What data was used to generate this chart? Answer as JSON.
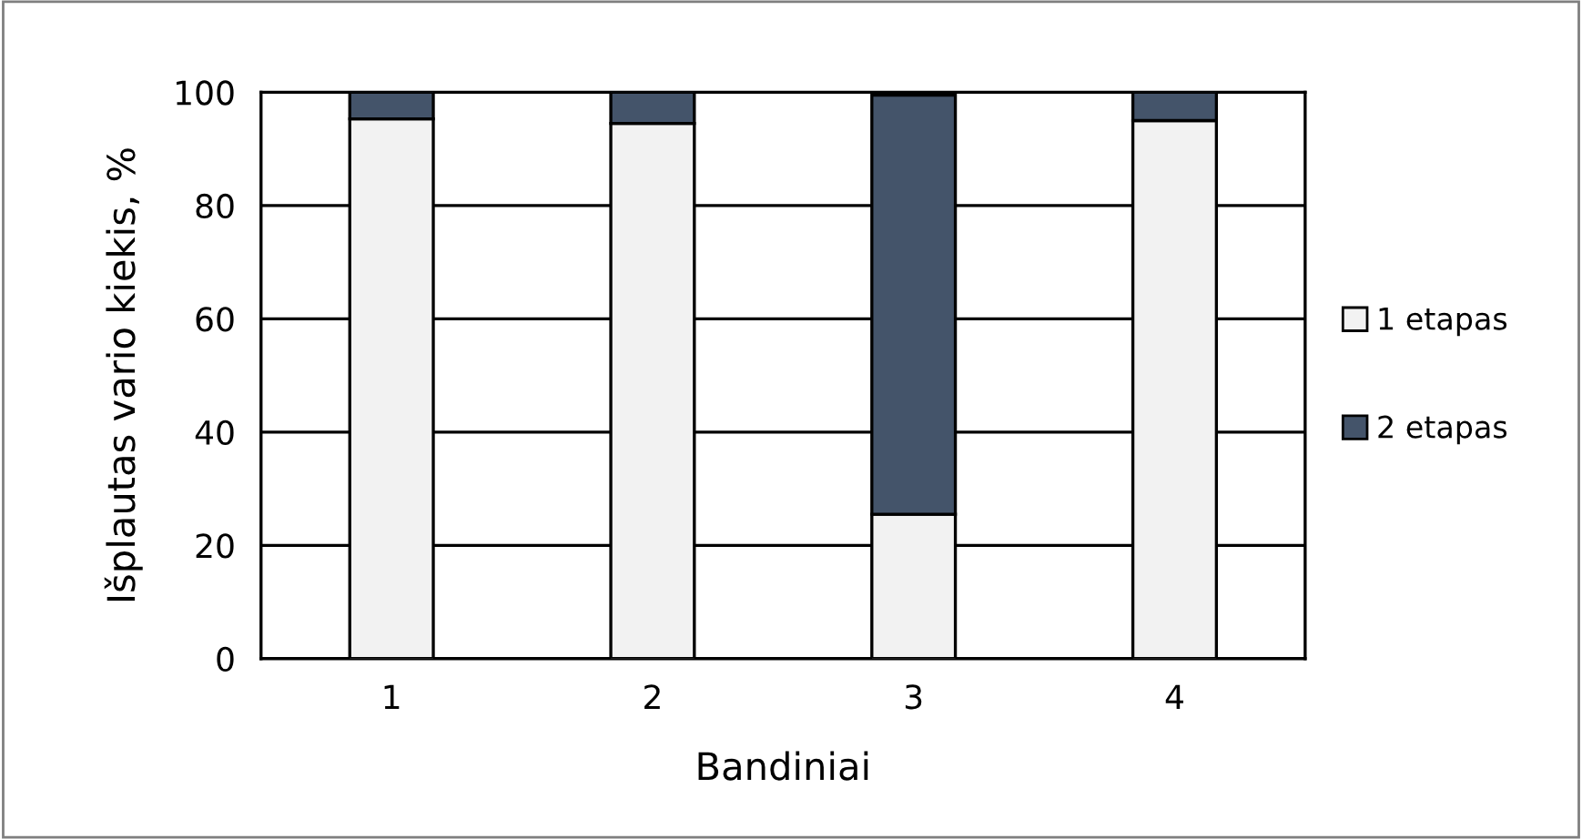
{
  "chart_data": {
    "type": "bar",
    "stacked": true,
    "xlabel": "Bandiniai",
    "ylabel": "Išplautas vario kiekis, %",
    "categories": [
      "1",
      "2",
      "3",
      "4"
    ],
    "series": [
      {
        "name": "1 etapas",
        "color": "#f2f2f2",
        "values": [
          95.3,
          94.5,
          25.5,
          95
        ]
      },
      {
        "name": "2 etapas",
        "color": "#44546a",
        "values": [
          4.7,
          5.5,
          74,
          5
        ]
      }
    ],
    "ylim": [
      0,
      100
    ],
    "yticks": [
      0,
      20,
      40,
      60,
      80,
      100
    ],
    "grid": "y",
    "legend": "right"
  }
}
